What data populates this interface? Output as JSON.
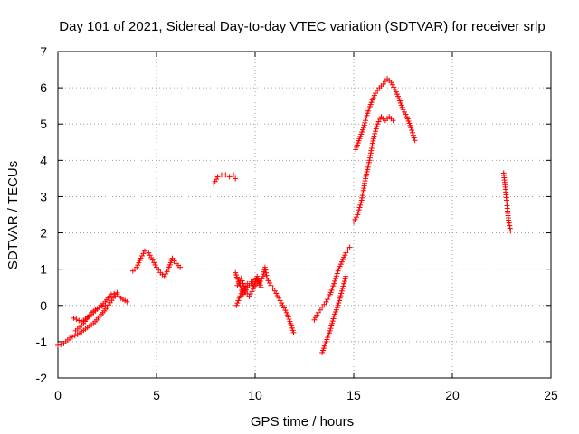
{
  "chart_data": {
    "type": "scatter",
    "title": "Day 101 of 2021, Sidereal Day-to-day VTEC variation (SDTVAR) for receiver srlp",
    "xlabel": "GPS time / hours",
    "ylabel": "SDTVAR / TECUs",
    "xlim": [
      0,
      25
    ],
    "ylim": [
      -2,
      7
    ],
    "xticks": [
      "0",
      "5",
      "10",
      "15",
      "20",
      "25"
    ],
    "yticks": [
      "-2",
      "-1",
      "0",
      "1",
      "2",
      "3",
      "4",
      "5",
      "6",
      "7"
    ],
    "grid": true,
    "marker": "+",
    "color": "#ff0000",
    "series": [
      {
        "name": "srlp",
        "segments": [
          [
            [
              0.0,
              -1.1
            ],
            [
              0.3,
              -1.05
            ],
            [
              0.6,
              -0.9
            ],
            [
              1.0,
              -0.8
            ],
            [
              1.4,
              -0.65
            ],
            [
              1.8,
              -0.5
            ],
            [
              2.2,
              -0.25
            ],
            [
              2.5,
              -0.05
            ],
            [
              2.8,
              0.2
            ],
            [
              3.0,
              0.3
            ],
            [
              3.2,
              0.2
            ],
            [
              3.5,
              0.1
            ]
          ],
          [
            [
              0.8,
              -0.35
            ],
            [
              1.2,
              -0.45
            ],
            [
              1.6,
              -0.3
            ],
            [
              2.0,
              -0.1
            ],
            [
              2.4,
              0.1
            ],
            [
              2.7,
              0.3
            ],
            [
              3.0,
              0.35
            ]
          ],
          [
            [
              0.9,
              -0.7
            ],
            [
              1.3,
              -0.5
            ],
            [
              1.7,
              -0.2
            ],
            [
              2.1,
              -0.05
            ],
            [
              2.4,
              0.0
            ]
          ],
          [
            [
              3.8,
              0.95
            ],
            [
              4.0,
              1.05
            ],
            [
              4.2,
              1.3
            ],
            [
              4.4,
              1.5
            ],
            [
              4.6,
              1.45
            ],
            [
              4.8,
              1.25
            ],
            [
              5.0,
              1.05
            ],
            [
              5.2,
              0.9
            ],
            [
              5.4,
              0.8
            ],
            [
              5.6,
              1.0
            ],
            [
              5.8,
              1.3
            ],
            [
              6.0,
              1.15
            ],
            [
              6.2,
              1.05
            ]
          ],
          [
            [
              7.9,
              3.35
            ],
            [
              8.1,
              3.55
            ],
            [
              8.3,
              3.6
            ],
            [
              8.5,
              3.6
            ],
            [
              8.7,
              3.55
            ],
            [
              8.9,
              3.6
            ],
            [
              9.0,
              3.5
            ]
          ],
          [
            [
              9.0,
              0.9
            ],
            [
              9.2,
              0.6
            ],
            [
              9.4,
              0.3
            ],
            [
              9.6,
              0.5
            ],
            [
              9.8,
              0.6
            ],
            [
              10.0,
              0.7
            ],
            [
              10.2,
              0.6
            ],
            [
              10.4,
              0.8
            ],
            [
              10.5,
              1.05
            ],
            [
              10.6,
              0.75
            ],
            [
              10.8,
              0.55
            ],
            [
              11.0,
              0.4
            ],
            [
              11.2,
              0.2
            ],
            [
              11.4,
              0.0
            ],
            [
              11.6,
              -0.2
            ],
            [
              11.8,
              -0.5
            ],
            [
              11.95,
              -0.75
            ]
          ],
          [
            [
              9.05,
              0.0
            ],
            [
              9.2,
              0.2
            ],
            [
              9.4,
              0.45
            ],
            [
              9.6,
              0.6
            ],
            [
              9.8,
              0.65
            ],
            [
              10.0,
              0.55
            ],
            [
              10.2,
              0.65
            ]
          ],
          [
            [
              9.1,
              0.55
            ],
            [
              9.3,
              0.75
            ],
            [
              9.5,
              0.4
            ],
            [
              9.7,
              0.25
            ],
            [
              9.9,
              0.45
            ],
            [
              10.1,
              0.8
            ],
            [
              10.3,
              0.5
            ]
          ],
          [
            [
              13.0,
              -0.4
            ],
            [
              13.2,
              -0.2
            ],
            [
              13.4,
              -0.05
            ],
            [
              13.6,
              0.1
            ],
            [
              13.8,
              0.3
            ],
            [
              14.0,
              0.6
            ],
            [
              14.2,
              0.95
            ],
            [
              14.4,
              1.2
            ],
            [
              14.6,
              1.45
            ],
            [
              14.8,
              1.6
            ]
          ],
          [
            [
              13.4,
              -1.3
            ],
            [
              13.6,
              -1.0
            ],
            [
              13.8,
              -0.7
            ],
            [
              14.0,
              -0.3
            ],
            [
              14.2,
              0.0
            ],
            [
              14.4,
              0.4
            ],
            [
              14.6,
              0.8
            ]
          ],
          [
            [
              15.0,
              2.3
            ],
            [
              15.2,
              2.5
            ],
            [
              15.4,
              2.9
            ],
            [
              15.6,
              3.5
            ],
            [
              15.8,
              4.0
            ],
            [
              16.0,
              4.6
            ],
            [
              16.2,
              5.0
            ],
            [
              16.4,
              5.2
            ],
            [
              16.6,
              5.1
            ],
            [
              16.8,
              5.2
            ],
            [
              17.0,
              5.1
            ]
          ],
          [
            [
              15.1,
              4.3
            ],
            [
              15.3,
              4.6
            ],
            [
              15.5,
              4.9
            ],
            [
              15.7,
              5.3
            ],
            [
              15.9,
              5.6
            ],
            [
              16.1,
              5.85
            ],
            [
              16.3,
              6.0
            ],
            [
              16.5,
              6.1
            ],
            [
              16.7,
              6.25
            ],
            [
              16.9,
              6.15
            ],
            [
              17.1,
              5.95
            ],
            [
              17.3,
              5.7
            ],
            [
              17.5,
              5.4
            ],
            [
              17.7,
              5.2
            ],
            [
              17.9,
              4.9
            ],
            [
              18.1,
              4.55
            ]
          ],
          [
            [
              22.6,
              3.65
            ],
            [
              22.7,
              3.2
            ],
            [
              22.75,
              2.9
            ],
            [
              22.8,
              2.6
            ],
            [
              22.85,
              2.35
            ],
            [
              22.9,
              2.2
            ],
            [
              22.95,
              2.05
            ]
          ]
        ]
      }
    ]
  }
}
